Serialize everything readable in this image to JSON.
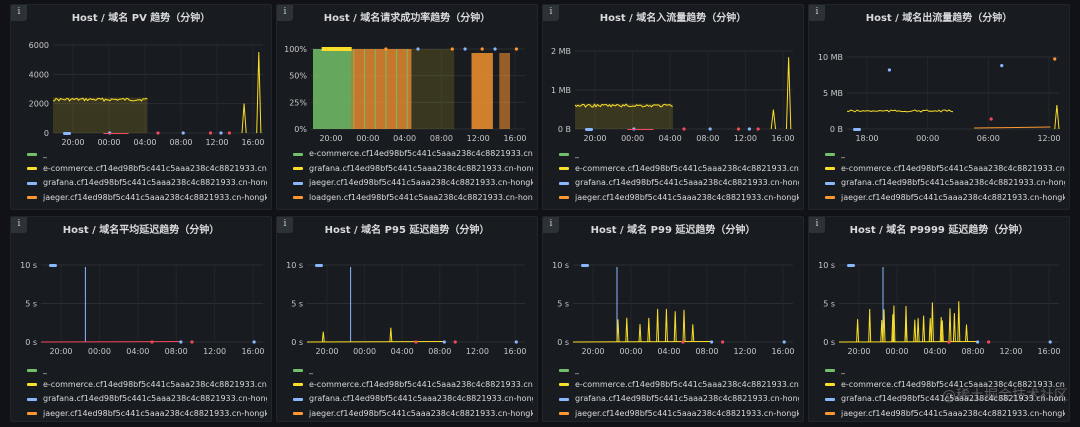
{
  "panels": [
    {
      "title": "Host / 域名 PV 趋势（分钟）",
      "y_ticks": [
        "6000",
        "4000",
        "2000",
        "0"
      ],
      "x_ticks": [
        "20:00",
        "00:00",
        "04:00",
        "08:00",
        "12:00",
        "16:00"
      ],
      "legend": [
        {
          "label": "_",
          "color": "#73bf69"
        },
        {
          "label": "e-commerce.cf14ed98bf5c441c5aaa238c4c8821933.cn-h",
          "color": "#fade2a"
        },
        {
          "label": "grafana.cf14ed98bf5c441c5aaa238c4c8821933.cn-hongko",
          "color": "#8ab8ff"
        },
        {
          "label": "jaeger.cf14ed98bf5c441c5aaa238c4c8821933.cn-hongko",
          "color": "#ff9830"
        }
      ]
    },
    {
      "title": "Host / 域名请求成功率趋势（分钟）",
      "y_ticks": [
        "100%",
        "50%",
        "25%",
        "0%"
      ],
      "x_ticks": [
        "20:00",
        "00:00",
        "04:00",
        "08:00",
        "12:00",
        "16:00"
      ],
      "legend": [
        {
          "label": "e-commerce.cf14ed98bf5c441c5aaa238c4c8821933.cn-h",
          "color": "#73bf69"
        },
        {
          "label": "grafana.cf14ed98bf5c441c5aaa238c4c8821933.cn-hongko",
          "color": "#fade2a"
        },
        {
          "label": "jaeger.cf14ed98bf5c441c5aaa238c4c8821933.cn-hongko",
          "color": "#8ab8ff"
        },
        {
          "label": "loadgen.cf14ed98bf5c441c5aaa238c4c8821933.cn-hongko",
          "color": "#ff9830"
        }
      ]
    },
    {
      "title": "Host / 域名入流量趋势（分钟）",
      "y_ticks": [
        "2 MB",
        "1 MB",
        "0 B"
      ],
      "x_ticks": [
        "20:00",
        "00:00",
        "04:00",
        "08:00",
        "12:00",
        "16:00"
      ],
      "legend": [
        {
          "label": "_",
          "color": "#73bf69"
        },
        {
          "label": "e-commerce.cf14ed98bf5c441c5aaa238c4c8821933.cn-h",
          "color": "#fade2a"
        },
        {
          "label": "grafana.cf14ed98bf5c441c5aaa238c4c8821933.cn-hongko",
          "color": "#8ab8ff"
        },
        {
          "label": "jaeger.cf14ed98bf5c441c5aaa238c4c8821933.cn-hongko",
          "color": "#ff9830"
        }
      ]
    },
    {
      "title": "Host / 域名出流量趋势（分钟）",
      "y_ticks": [
        "10 MB",
        "5 MB",
        "0 B"
      ],
      "x_ticks": [
        "18:00",
        "00:00",
        "06:00",
        "12:00"
      ],
      "legend": [
        {
          "label": "_",
          "color": "#73bf69"
        },
        {
          "label": "e-commerce.cf14ed98bf5c441c5aaa238c4c8821933.cn-h",
          "color": "#fade2a"
        },
        {
          "label": "grafana.cf14ed98bf5c441c5aaa238c4c8821933.cn-hongko",
          "color": "#8ab8ff"
        },
        {
          "label": "jaeger.cf14ed98bf5c441c5aaa238c4c8821933.cn-hongko",
          "color": "#ff9830"
        }
      ]
    },
    {
      "title": "Host / 域名平均延迟趋势（分钟）",
      "y_ticks": [
        "10 s",
        "5 s",
        "0 s"
      ],
      "x_ticks": [
        "20:00",
        "00:00",
        "04:00",
        "08:00",
        "12:00",
        "16:00"
      ],
      "legend": [
        {
          "label": "_",
          "color": "#73bf69"
        },
        {
          "label": "e-commerce.cf14ed98bf5c441c5aaa238c4c8821933.cn-h",
          "color": "#fade2a"
        },
        {
          "label": "grafana.cf14ed98bf5c441c5aaa238c4c8821933.cn-hongko",
          "color": "#8ab8ff"
        },
        {
          "label": "jaeger.cf14ed98bf5c441c5aaa238c4c8821933.cn-hongko",
          "color": "#ff9830"
        }
      ]
    },
    {
      "title": "Host / 域名 P95 延迟趋势（分钟）",
      "y_ticks": [
        "10 s",
        "5 s",
        "0 s"
      ],
      "x_ticks": [
        "20:00",
        "00:00",
        "04:00",
        "08:00",
        "12:00",
        "16:00"
      ],
      "legend": [
        {
          "label": "_",
          "color": "#73bf69"
        },
        {
          "label": "e-commerce.cf14ed98bf5c441c5aaa238c4c8821933.cn-h",
          "color": "#fade2a"
        },
        {
          "label": "grafana.cf14ed98bf5c441c5aaa238c4c8821933.cn-hongko",
          "color": "#8ab8ff"
        },
        {
          "label": "jaeger.cf14ed98bf5c441c5aaa238c4c8821933.cn-hongko",
          "color": "#ff9830"
        }
      ]
    },
    {
      "title": "Host / 域名 P99 延迟趋势（分钟）",
      "y_ticks": [
        "10 s",
        "5 s",
        "0 s"
      ],
      "x_ticks": [
        "20:00",
        "00:00",
        "04:00",
        "08:00",
        "12:00",
        "16:00"
      ],
      "legend": [
        {
          "label": "_",
          "color": "#73bf69"
        },
        {
          "label": "e-commerce.cf14ed98bf5c441c5aaa238c4c8821933.cn-h",
          "color": "#fade2a"
        },
        {
          "label": "grafana.cf14ed98bf5c441c5aaa238c4c8821933.cn-hongko",
          "color": "#8ab8ff"
        },
        {
          "label": "jaeger.cf14ed98bf5c441c5aaa238c4c8821933.cn-hongko",
          "color": "#ff9830"
        }
      ]
    },
    {
      "title": "Host / 域名 P9999 延迟趋势（分钟）",
      "y_ticks": [
        "10 s",
        "5 s",
        "0 s"
      ],
      "x_ticks": [
        "20:00",
        "00:00",
        "04:00",
        "08:00",
        "12:00",
        "16:00"
      ],
      "legend": [
        {
          "label": "_",
          "color": "#73bf69"
        },
        {
          "label": "e-commerce.cf14ed98bf5c441c5aaa238c4c8821933.cn-h",
          "color": "#fade2a"
        },
        {
          "label": "grafana.cf14ed98bf5c441c5aaa238c4c8821933.cn-hongko",
          "color": "#8ab8ff"
        },
        {
          "label": "jaeger.cf14ed98bf5c441c5aaa238c4c8821933.cn-hongko",
          "color": "#ff9830"
        }
      ]
    }
  ],
  "watermark": "@稀土掘金技术社区"
}
